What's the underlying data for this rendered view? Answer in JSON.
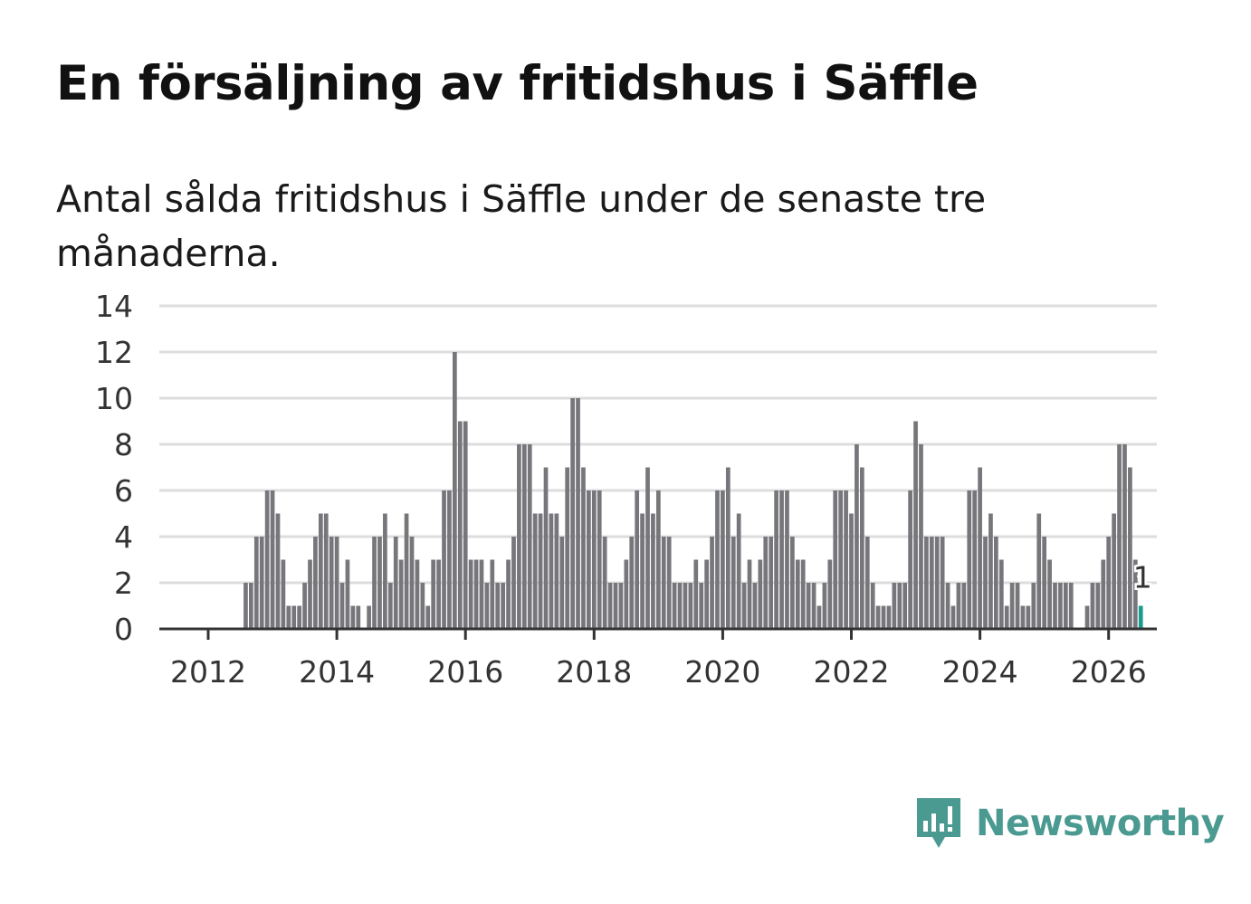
{
  "header": {
    "title": "En försäljning av fritidshus i Säffle",
    "subtitle": "Antal sålda fritidshus i Säffle under de senaste tre månaderna."
  },
  "brand": {
    "name": "Newsworthy",
    "icon": "newsworthy-logo-icon",
    "color": "#4a9a91"
  },
  "colors": {
    "bar": "#77767b",
    "highlight": "#1a9b8f",
    "grid": "#dddddd",
    "axis": "#333333"
  },
  "chart_data": {
    "type": "bar",
    "title": "En försäljning av fritidshus i Säffle",
    "subtitle": "Antal sålda fritidshus i Säffle under de senaste tre månaderna.",
    "xlabel": "",
    "ylabel": "",
    "x_start": "2011-10",
    "frequency": "monthly",
    "x_ticks": [
      "2012",
      "2014",
      "2016",
      "2018",
      "2020",
      "2022",
      "2024",
      "2026"
    ],
    "y_ticks": [
      0,
      2,
      4,
      6,
      8,
      10,
      12,
      14
    ],
    "ylim": [
      0,
      14
    ],
    "grid": true,
    "values": [
      0,
      0,
      0,
      0,
      0,
      0,
      0,
      0,
      0,
      0,
      2,
      2,
      4,
      4,
      6,
      6,
      5,
      3,
      1,
      1,
      1,
      2,
      3,
      4,
      5,
      5,
      4,
      4,
      2,
      3,
      1,
      1,
      0,
      1,
      4,
      4,
      5,
      2,
      4,
      3,
      5,
      4,
      3,
      2,
      1,
      3,
      3,
      6,
      6,
      12,
      9,
      9,
      3,
      3,
      3,
      2,
      3,
      2,
      2,
      3,
      4,
      8,
      8,
      8,
      5,
      5,
      7,
      5,
      5,
      4,
      7,
      10,
      10,
      7,
      6,
      6,
      6,
      4,
      2,
      2,
      2,
      3,
      4,
      6,
      5,
      7,
      5,
      6,
      4,
      4,
      2,
      2,
      2,
      2,
      3,
      2,
      3,
      4,
      6,
      6,
      7,
      4,
      5,
      2,
      3,
      2,
      3,
      4,
      4,
      6,
      6,
      6,
      4,
      3,
      3,
      2,
      2,
      1,
      2,
      3,
      6,
      6,
      6,
      5,
      8,
      7,
      4,
      2,
      1,
      1,
      1,
      2,
      2,
      2,
      6,
      9,
      8,
      4,
      4,
      4,
      4,
      2,
      1,
      2,
      2,
      6,
      6,
      7,
      4,
      5,
      4,
      3,
      1,
      2,
      2,
      1,
      1,
      2,
      5,
      4,
      3,
      2,
      2,
      2,
      2,
      0,
      0,
      1,
      2,
      2,
      3,
      4,
      5,
      8,
      8,
      7,
      3,
      1
    ],
    "highlight_last": true,
    "last_label": "1"
  }
}
